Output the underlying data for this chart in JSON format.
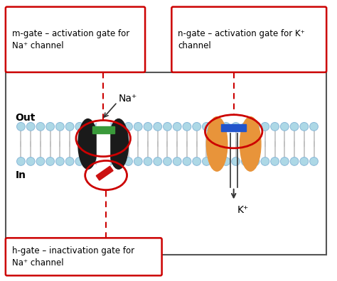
{
  "bg_color": "#ffffff",
  "box_border_color": "#cc0000",
  "membrane_color": "#d3d3d3",
  "membrane_circle_color": "#add8e6",
  "lipid_tail_color": "#d3d3d3",
  "na_channel_black": "#1a1a1a",
  "na_gate_green": "#3a9a3a",
  "na_h_gate_red": "#cc1111",
  "k_channel_orange": "#e8943a",
  "k_gate_blue": "#2255cc",
  "label_m": "m-gate – activation gate for\nNa⁺ channel",
  "label_n": "n-gate – activation gate for K⁺\nchannel",
  "label_h": "h-gate – inactivation gate for\nNa⁺ channel",
  "text_out": "Out",
  "text_in": "In",
  "text_na": "Na⁺",
  "text_k": "K⁺",
  "arrow_color": "#333333",
  "dashed_red": "#cc0000"
}
